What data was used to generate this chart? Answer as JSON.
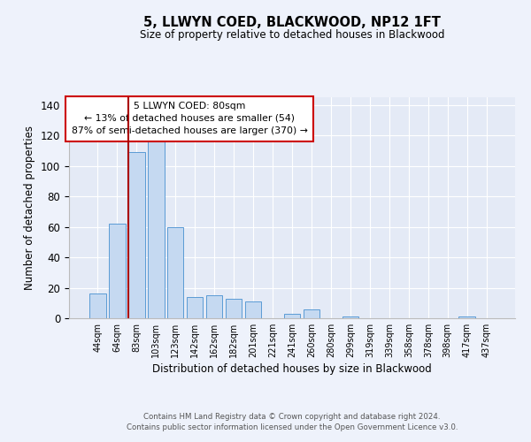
{
  "title": "5, LLWYN COED, BLACKWOOD, NP12 1FT",
  "subtitle": "Size of property relative to detached houses in Blackwood",
  "xlabel": "Distribution of detached houses by size in Blackwood",
  "ylabel": "Number of detached properties",
  "bar_labels": [
    "44sqm",
    "64sqm",
    "83sqm",
    "103sqm",
    "123sqm",
    "142sqm",
    "162sqm",
    "182sqm",
    "201sqm",
    "221sqm",
    "241sqm",
    "260sqm",
    "280sqm",
    "299sqm",
    "319sqm",
    "339sqm",
    "358sqm",
    "378sqm",
    "398sqm",
    "417sqm",
    "437sqm"
  ],
  "bar_heights": [
    16,
    62,
    109,
    116,
    60,
    14,
    15,
    13,
    11,
    0,
    3,
    6,
    0,
    1,
    0,
    0,
    0,
    0,
    0,
    1,
    0
  ],
  "bar_color": "#c5d9f1",
  "bar_edge_color": "#5b9bd5",
  "red_line_index": 2,
  "annotation_title": "5 LLWYN COED: 80sqm",
  "annotation_line1": "← 13% of detached houses are smaller (54)",
  "annotation_line2": "87% of semi-detached houses are larger (370) →",
  "annotation_box_color": "#ffffff",
  "annotation_box_edge": "#cc0000",
  "red_line_color": "#aa0000",
  "ylim": [
    0,
    145
  ],
  "yticks": [
    0,
    20,
    40,
    60,
    80,
    100,
    120,
    140
  ],
  "footer_line1": "Contains HM Land Registry data © Crown copyright and database right 2024.",
  "footer_line2": "Contains public sector information licensed under the Open Government Licence v3.0.",
  "background_color": "#eef2fb",
  "plot_bg_color": "#e4eaf6"
}
